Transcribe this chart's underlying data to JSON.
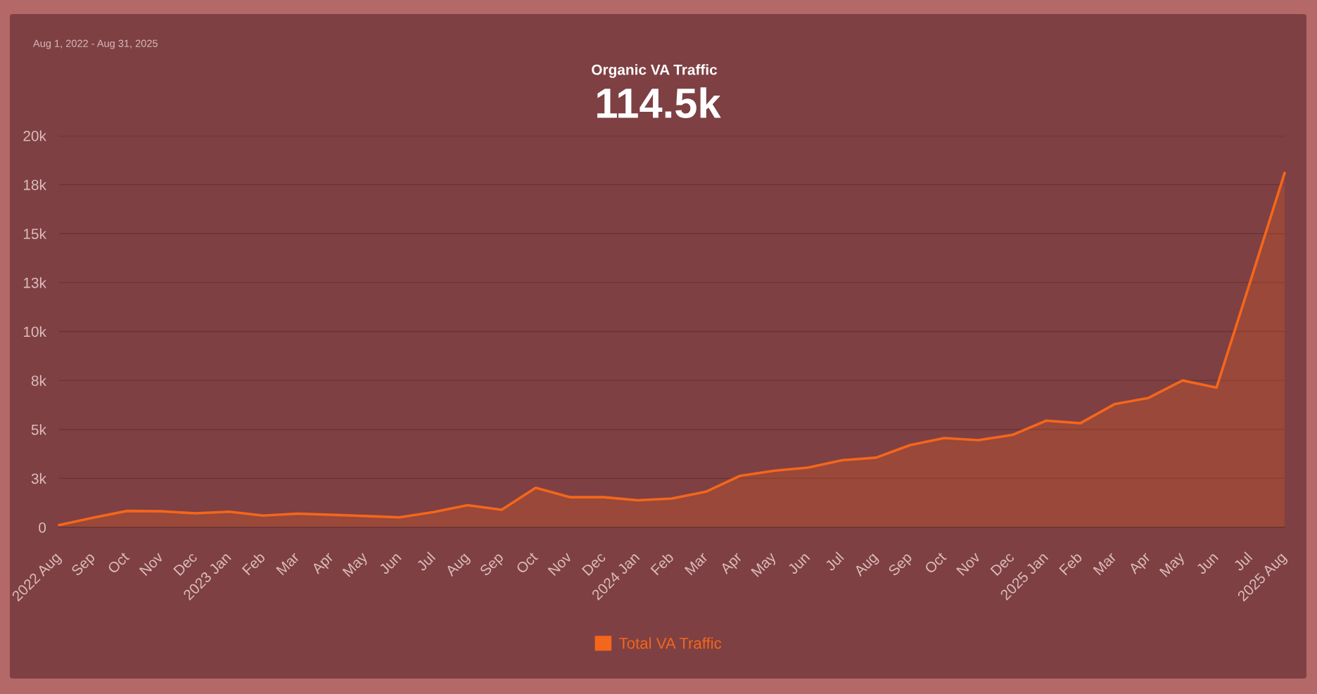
{
  "chart_data": {
    "type": "area",
    "title": "Organic VA Traffic",
    "subtitle": "114.5k",
    "annotations": [
      "Aug 1, 2022 - Aug 31, 2025"
    ],
    "categories": [
      "2022 Aug",
      "Sep",
      "Oct",
      "Nov",
      "Dec",
      "2023 Jan",
      "Feb",
      "Mar",
      "Apr",
      "May",
      "Jun",
      "Jul",
      "Aug",
      "Sep",
      "Oct",
      "Nov",
      "Dec",
      "2024 Jan",
      "Feb",
      "Mar",
      "Apr",
      "May",
      "Jun",
      "Jul",
      "Aug",
      "Sep",
      "Oct",
      "Nov",
      "Dec",
      "2025 Jan",
      "Feb",
      "Mar",
      "Apr",
      "May",
      "Jun",
      "Jul",
      "2025 Aug"
    ],
    "series": [
      {
        "name": "Total VA Traffic",
        "color": "#f4661b",
        "values": [
          120,
          490,
          840,
          820,
          720,
          800,
          600,
          700,
          640,
          580,
          510,
          780,
          1130,
          900,
          2020,
          1540,
          1540,
          1380,
          1470,
          1820,
          2630,
          2890,
          3050,
          3430,
          3560,
          4200,
          4560,
          4450,
          4720,
          5450,
          5320,
          6290,
          6610,
          7500,
          7140,
          12600,
          18100
        ]
      }
    ],
    "ylim": [
      0,
      20000
    ],
    "yticks": [
      0,
      {
        "value": 2500,
        "label": "3k"
      },
      {
        "value": 5000,
        "label": "5k"
      },
      {
        "value": 7500,
        "label": "8k"
      },
      {
        "value": 10000,
        "label": "10k"
      },
      {
        "value": 12500,
        "label": "13k"
      },
      {
        "value": 15000,
        "label": "15k"
      },
      {
        "value": 17500,
        "label": "18k"
      },
      {
        "value": 20000,
        "label": "20k"
      }
    ],
    "grid": "y",
    "legend": "bottom"
  }
}
